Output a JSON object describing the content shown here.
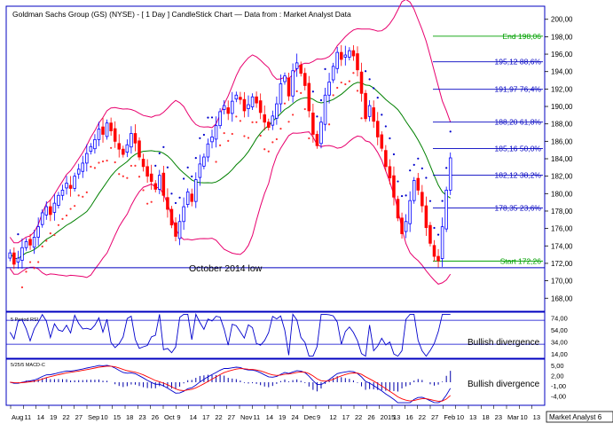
{
  "title": "Goldman Sachs Group (GS) (NYSE) -  [ 1 Day ] CandleStick Chart — Data from : Market Analyst Data",
  "colors": {
    "background": "#ffffff",
    "frame": "#0000c0",
    "candle_up": "#0000ff",
    "candle_down": "#ff0000",
    "bollinger": "#e8006e",
    "moving_average": "#008000",
    "parabolic_sar_up": "#0000cc",
    "parabolic_sar_down": "#ff3030",
    "fib_level": "#0000c0",
    "fib_end": "#00a000",
    "support_line": "#0000c0",
    "rsi": "#0000cc",
    "macd": "#0000cc",
    "macd_signal": "#ff0000",
    "histogram": "#0000aa"
  },
  "chart_data": {
    "type": "candlestick",
    "title": "Goldman Sachs Group (GS) (NYSE) -  [ 1 Day ] CandleStick Chart — Data from : Market Analyst Data",
    "y_ticks": [
      "200,00",
      "198,00",
      "196,00",
      "194,00",
      "192,00",
      "190,00",
      "188,00",
      "186,00",
      "184,00",
      "182,00",
      "180,00",
      "178,00",
      "176,00",
      "174,00",
      "172,00",
      "170,00",
      "168,00"
    ],
    "ylim": [
      166.5,
      201.5
    ],
    "x_labels": [
      "Aug",
      "11",
      "14",
      "19",
      "22",
      "27",
      "Sep",
      "10",
      "15",
      "18",
      "23",
      "26",
      "Oct",
      "9",
      "14",
      "17",
      "22",
      "27",
      "Nov",
      "11",
      "14",
      "19",
      "24",
      "Dec",
      "9",
      "12",
      "17",
      "22",
      "26",
      "2015",
      "13",
      "16",
      "22",
      "27",
      "Feb",
      "10",
      "13",
      "18",
      "23",
      "Mar",
      "10",
      "13"
    ],
    "closes": [
      173.2,
      171.9,
      172.6,
      173.8,
      174.5,
      174.1,
      175.0,
      176.2,
      177.8,
      178.5,
      177.6,
      178.9,
      179.8,
      180.4,
      181.2,
      180.6,
      182.0,
      182.8,
      183.5,
      184.6,
      185.4,
      186.2,
      187.4,
      186.8,
      188.1,
      187.2,
      186.0,
      185.1,
      184.5,
      185.6,
      186.9,
      185.8,
      184.2,
      183.1,
      182.0,
      181.4,
      180.5,
      182.1,
      179.8,
      178.2,
      176.4,
      175.1,
      176.8,
      178.5,
      180.2,
      179.1,
      181.6,
      183.4,
      184.2,
      185.7,
      186.5,
      187.8,
      189.4,
      190.1,
      189.2,
      190.6,
      191.3,
      190.8,
      189.5,
      190.2,
      191.1,
      190.4,
      189.3,
      188.2,
      187.6,
      188.9,
      190.3,
      192.6,
      193.5,
      191.2,
      194.1,
      195.0,
      193.8,
      192.4,
      189.5,
      186.8,
      185.5,
      188.2,
      191.3,
      192.8,
      194.6,
      196.2,
      195.4,
      195.9,
      196.4,
      195.8,
      194.2,
      191.5,
      188.6,
      190.1,
      188.3,
      186.5,
      185.2,
      183.1,
      181.8,
      179.6,
      177.2,
      175.4,
      176.8,
      179.2,
      181.5,
      180.4,
      178.6,
      176.1,
      174.3,
      172.8,
      172.3,
      176.2,
      180.4,
      184.1
    ],
    "annotations": {
      "support_label": "October 2014 low",
      "support_level": 171.5,
      "fib_labels": [
        "End 198,06",
        "195,12 88,6%",
        "191,97 76,4%",
        "188,20 61,8%",
        "185,16 50,0%",
        "182,12 38,2%",
        "178,35 23,6%",
        "Start 172,26"
      ],
      "fib_values": [
        198.06,
        195.12,
        191.97,
        188.2,
        185.16,
        182.12,
        178.35,
        172.26
      ]
    },
    "rsi": {
      "label": "5 Period RSI",
      "ticks": [
        "74,00",
        "54,00",
        "34,00",
        "14,00"
      ],
      "ylim": [
        8,
        82
      ],
      "upper_line": 70,
      "lower_line": 30,
      "annotation": "Bullish divergence"
    },
    "macd": {
      "label": "5/25/5 MACD-C",
      "ticks": [
        "5,00",
        "2,00",
        "-1,00",
        "-4,00"
      ],
      "ylim": [
        -6.5,
        6.5
      ],
      "annotation": "Bullish divergence"
    },
    "watermark": "Market Analyst 6"
  }
}
